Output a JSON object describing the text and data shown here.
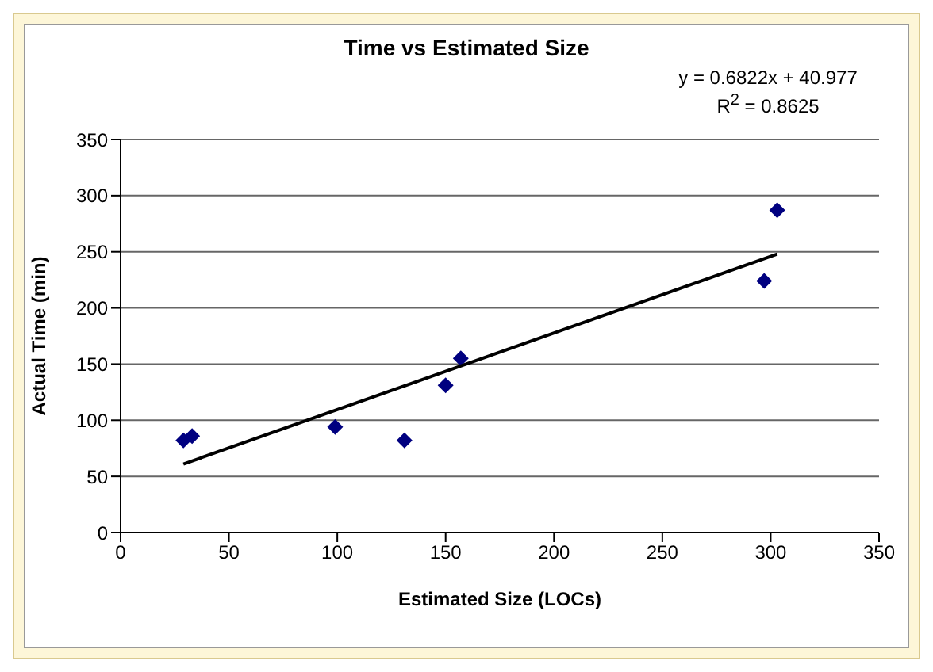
{
  "chart_data": {
    "type": "scatter",
    "title": "Time vs Estimated Size",
    "xlabel": "Estimated Size (LOCs)",
    "ylabel": "Actual Time (min)",
    "annotations": [
      "y = 0.6822x + 40.977",
      "R$^{2}$ = 0.8625"
    ],
    "series": [
      {
        "color": "#000080",
        "marker": "diamond",
        "x": [
          29,
          33,
          99,
          131,
          150,
          157,
          297,
          303
        ],
        "values": [
          82,
          86,
          94,
          82,
          131,
          155,
          224,
          287
        ]
      },
      {
        "type": "line",
        "color": "#000000",
        "marker": "none",
        "x": [
          29,
          303
        ],
        "values": [
          61,
          248
        ]
      }
    ],
    "xlim": [
      0,
      350
    ],
    "xticks": [
      0,
      50,
      100,
      150,
      200,
      250,
      300,
      350
    ],
    "ylim": [
      0,
      350
    ],
    "yticks": [
      0,
      50,
      100,
      150,
      200,
      250,
      300,
      350
    ],
    "grid": "y",
    "legend": false
  }
}
